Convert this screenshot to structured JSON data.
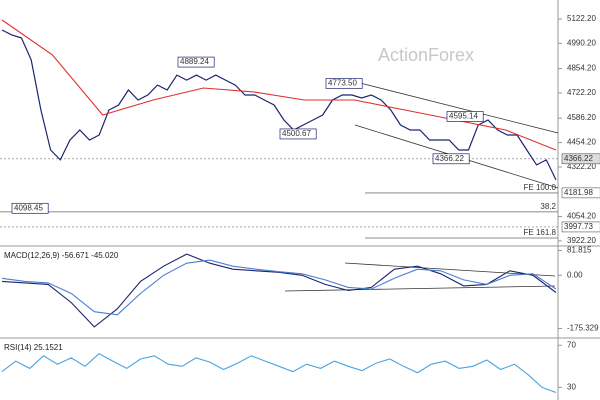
{
  "watermark": "ActionForex",
  "chart_data": [
    {
      "type": "line",
      "ylim": [
        3900,
        5225
      ],
      "yticks": [
        {
          "value": 5122.2,
          "label": "5122.20"
        },
        {
          "value": 4990.2,
          "label": "4990.20"
        },
        {
          "value": 4854.2,
          "label": "4854.20"
        },
        {
          "value": 4722.2,
          "label": "4722.20"
        },
        {
          "value": 4586.2,
          "label": "4586.20"
        },
        {
          "value": 4454.2,
          "label": "4454.20"
        },
        {
          "value": 4322.2,
          "label": "4322.20"
        },
        {
          "value": 4054.2,
          "label": "4054.20"
        },
        {
          "value": 3922.2,
          "label": "3922.20"
        }
      ],
      "series": [
        {
          "color": "#1c2470",
          "values": [
            5063,
            5036,
            5020,
            4901,
            4630,
            4414,
            4360,
            4468,
            4522,
            4468,
            4495,
            4630,
            4657,
            4738,
            4684,
            4711,
            4765,
            4738,
            4819,
            4792,
            4819,
            4792,
            4819,
            4792,
            4765,
            4711,
            4711,
            4684,
            4657,
            4576,
            4522,
            4549,
            4576,
            4603,
            4684,
            4711,
            4711,
            4695,
            4711,
            4684,
            4630,
            4549,
            4522,
            4522,
            4468,
            4468,
            4468,
            4414,
            4414,
            4549,
            4576,
            4522,
            4495,
            4495,
            4414,
            4333,
            4360,
            4252
          ]
        },
        {
          "color": "#e0302a",
          "values": [
            5117,
            4928,
            4603,
            4684,
            4749,
            4728,
            4684,
            4684,
            4630,
            4576,
            4522,
            4414
          ]
        }
      ],
      "annotations": [
        {
          "value": 4889.24,
          "label": "4889.24"
        },
        {
          "value": 4773.5,
          "label": "4773.50"
        },
        {
          "value": 4595.14,
          "label": "4595.14"
        },
        {
          "value": 4500.67,
          "label": "4500.67"
        },
        {
          "value": 4366.22,
          "label": "4366.22"
        },
        {
          "value": 4098.45,
          "label": "4098.45"
        }
      ],
      "levels": [
        {
          "value": 4366.22,
          "label": "4366.22"
        },
        {
          "value": 4181.98,
          "label": "4181.98"
        },
        {
          "value": 3997.73,
          "label": "3997.73"
        }
      ],
      "fib_levels": [
        {
          "value": 4181.98,
          "label": "FE 100.0"
        },
        {
          "value": 4079,
          "label": "38.2"
        },
        {
          "value": 3938,
          "label": "FE 161.8"
        }
      ]
    },
    {
      "type": "line",
      "title": "MACD(12,26,9) -56.671 -45.020",
      "ylim": [
        -200,
        90
      ],
      "yticks": [
        81.815,
        {
          "value": 0,
          "label": "0.00"
        },
        -175.329
      ],
      "series": [
        {
          "color": "#1c2470",
          "values": [
            -20,
            -25,
            -30,
            -90,
            -170,
            -110,
            -20,
            30,
            70,
            40,
            20,
            15,
            10,
            0,
            -30,
            -50,
            -40,
            20,
            30,
            5,
            -35,
            -30,
            15,
            0,
            -56.671
          ]
        },
        {
          "color": "#4a7fd0",
          "values": [
            -10,
            -20,
            -25,
            -60,
            -120,
            -130,
            -60,
            0,
            40,
            50,
            30,
            20,
            12,
            5,
            -15,
            -40,
            -45,
            -10,
            20,
            15,
            -15,
            -30,
            0,
            5,
            -45.02
          ]
        }
      ]
    },
    {
      "type": "line",
      "title": "RSI(14) 25.1521",
      "ylim": [
        19,
        75
      ],
      "yticks": [
        70,
        30
      ],
      "series": [
        {
          "color": "#4aa3e0",
          "values": [
            45,
            55,
            48,
            60,
            52,
            58,
            50,
            62,
            55,
            48,
            57,
            60,
            52,
            50,
            58,
            54,
            47,
            53,
            60,
            55,
            50,
            45,
            52,
            48,
            55,
            50,
            46,
            53,
            57,
            50,
            44,
            52,
            55,
            48,
            50,
            56,
            47,
            52,
            42,
            30,
            25.1521
          ]
        }
      ]
    }
  ]
}
